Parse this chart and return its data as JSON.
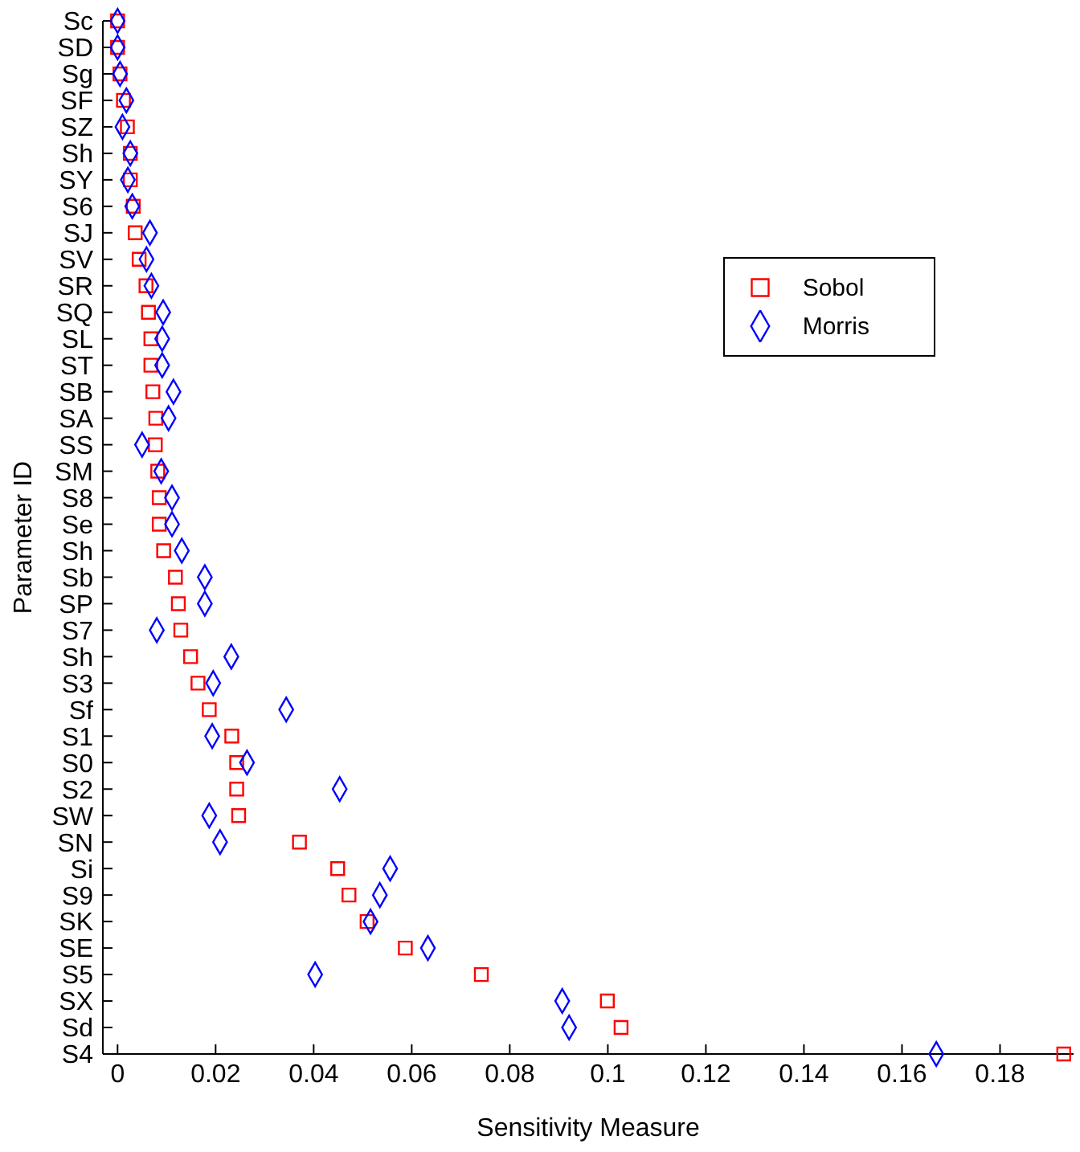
{
  "chart_data": {
    "type": "scatter",
    "orientation": "horizontal",
    "xlabel": "Sensitivity Measure",
    "ylabel": "Parameter ID",
    "categories": [
      "Sc",
      "SD",
      "Sg",
      "SF",
      "SZ",
      "Sh",
      "SY",
      "S6",
      "SJ",
      "SV",
      "SR",
      "SQ",
      "SL",
      "ST",
      "SB",
      "SA",
      "SS",
      "SM",
      "S8",
      "Se",
      "Sh",
      "Sb",
      "SP",
      "S7",
      "Sh",
      "S3",
      "Sf",
      "S1",
      "S0",
      "S2",
      "SW",
      "SN",
      "Si",
      "S9",
      "SK",
      "SE",
      "S5",
      "SX",
      "Sd",
      "S4"
    ],
    "series": [
      {
        "name": "Sobol",
        "color": "#ff0000",
        "marker": "square",
        "values": [
          0,
          0,
          0.0005,
          0.0012,
          0.002,
          0.0026,
          0.0026,
          0.0032,
          0.0036,
          0.0044,
          0.0058,
          0.0063,
          0.0068,
          0.0068,
          0.0072,
          0.0078,
          0.0077,
          0.0082,
          0.0085,
          0.0085,
          0.0094,
          0.0118,
          0.0124,
          0.0129,
          0.0149,
          0.0164,
          0.0187,
          0.0233,
          0.0243,
          0.0243,
          0.0247,
          0.0371,
          0.0449,
          0.0472,
          0.0509,
          0.0587,
          0.0742,
          0.0999,
          0.1027,
          0.193
        ]
      },
      {
        "name": "Morris",
        "color": "#0000ff",
        "marker": "diamond",
        "values": [
          0,
          0,
          0.0005,
          0.0018,
          0.001,
          0.0026,
          0.0021,
          0.003,
          0.0066,
          0.0059,
          0.0069,
          0.0093,
          0.0091,
          0.0091,
          0.0114,
          0.0104,
          0.005,
          0.0089,
          0.0111,
          0.0111,
          0.0131,
          0.0178,
          0.0178,
          0.008,
          0.0232,
          0.0195,
          0.0344,
          0.0193,
          0.0264,
          0.0453,
          0.0187,
          0.0209,
          0.0556,
          0.0535,
          0.0516,
          0.0633,
          0.0403,
          0.0907,
          0.0921,
          0.167
        ]
      }
    ],
    "xlim": [
      -0.003,
      0.195
    ],
    "xticks": [
      0,
      0.02,
      0.04,
      0.06,
      0.08,
      0.1,
      0.12,
      0.14,
      0.16,
      0.18
    ],
    "grid": false,
    "legend": "top right"
  }
}
